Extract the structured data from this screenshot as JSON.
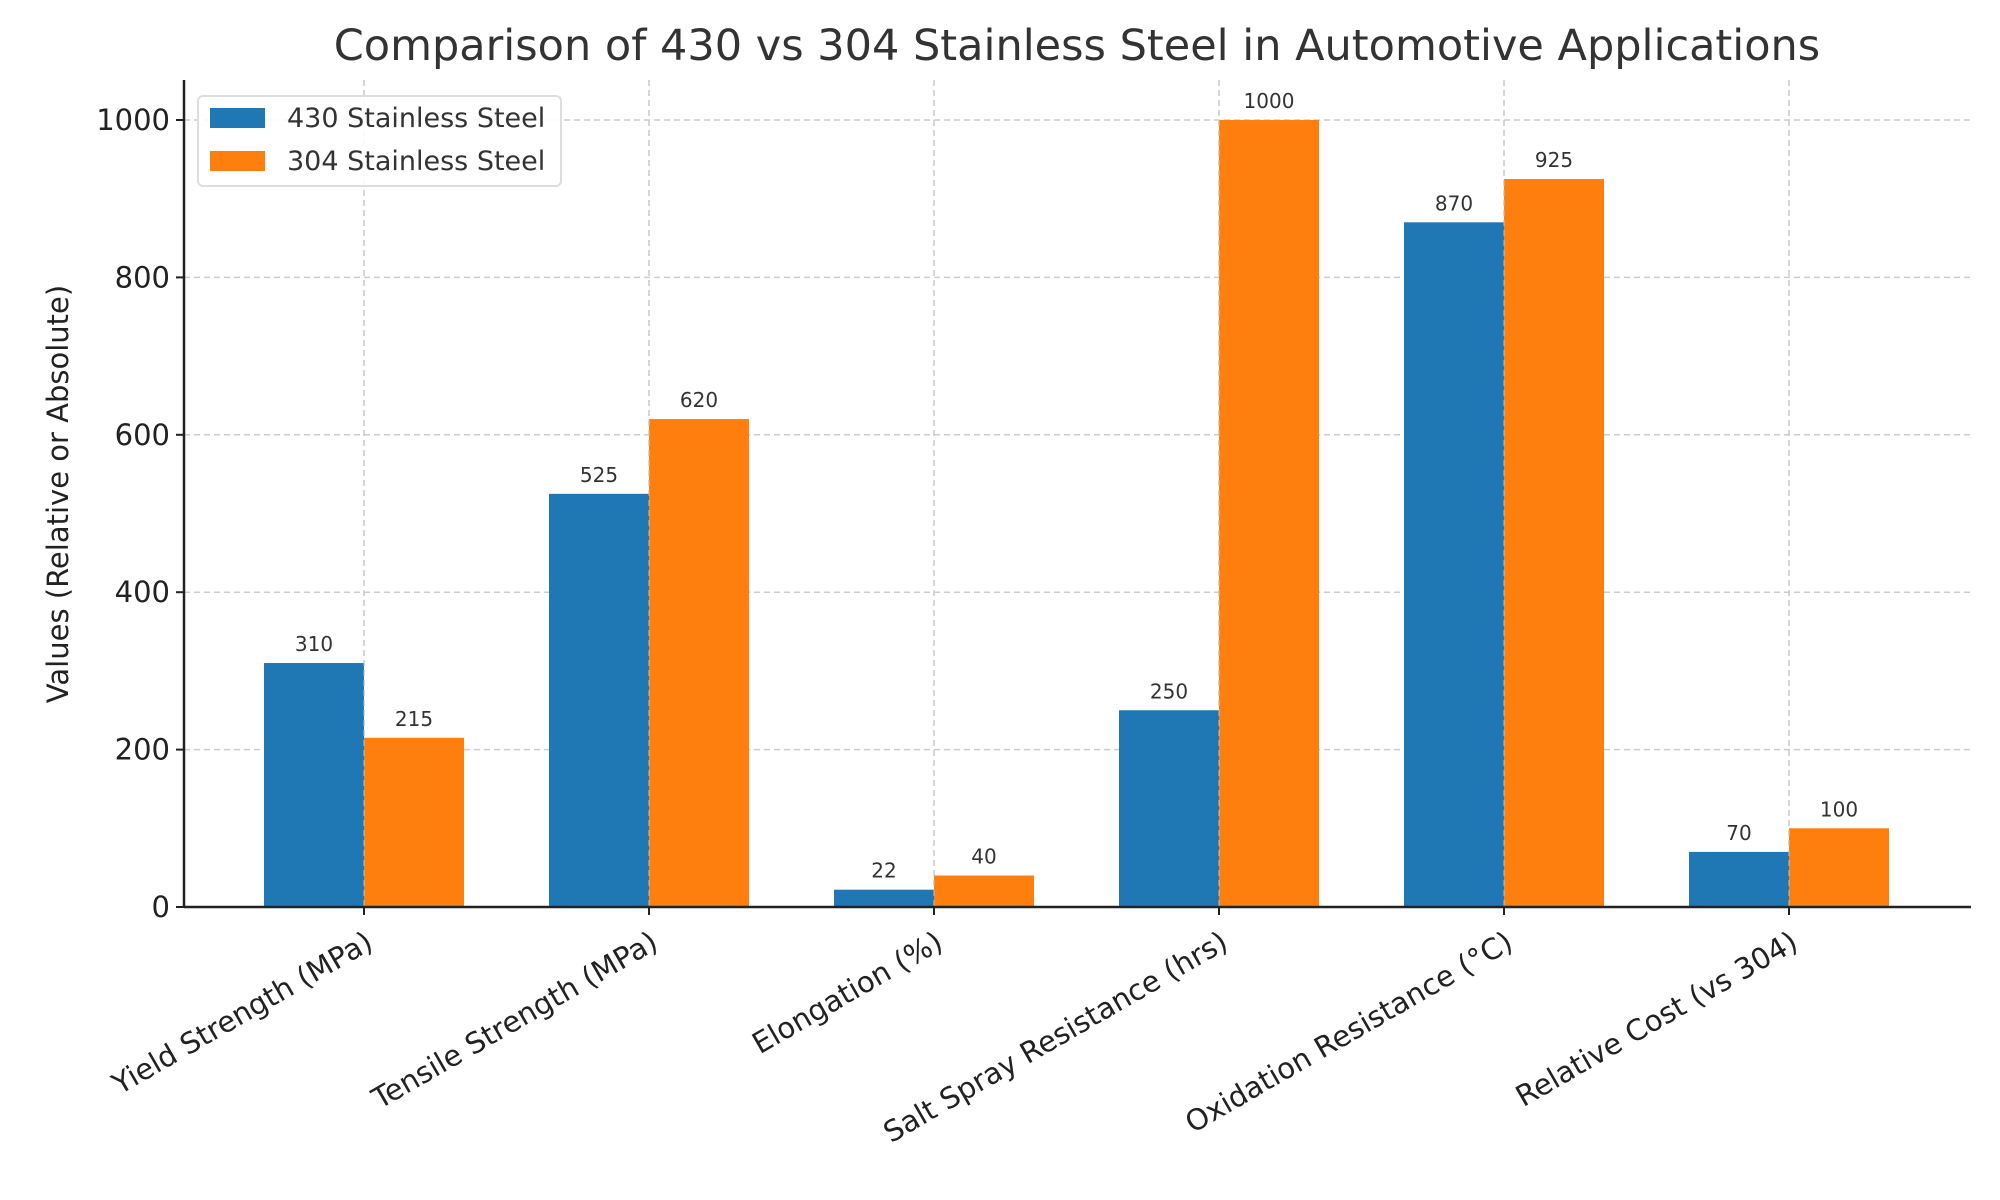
{
  "chart_data": {
    "type": "bar",
    "title": "Comparison of 430 vs 304 Stainless Steel in Automotive Applications",
    "xlabel": "",
    "ylabel": "Values (Relative or Absolute)",
    "ylim": [
      0,
      1050
    ],
    "yticks": [
      0,
      200,
      400,
      600,
      800,
      1000
    ],
    "grid": true,
    "legend_position": "top-left",
    "categories": [
      "Yield Strength (MPa)",
      "Tensile Strength (MPa)",
      "Elongation (%)",
      "Salt Spray Resistance (hrs)",
      "Oxidation Resistance (°C)",
      "Relative Cost (vs 304)"
    ],
    "series": [
      {
        "name": "430 Stainless Steel",
        "color": "#1f77b4",
        "values": [
          310,
          525,
          22,
          250,
          870,
          70
        ]
      },
      {
        "name": "304 Stainless Steel",
        "color": "#ff7f0e",
        "values": [
          215,
          620,
          40,
          1000,
          925,
          100
        ]
      }
    ]
  }
}
